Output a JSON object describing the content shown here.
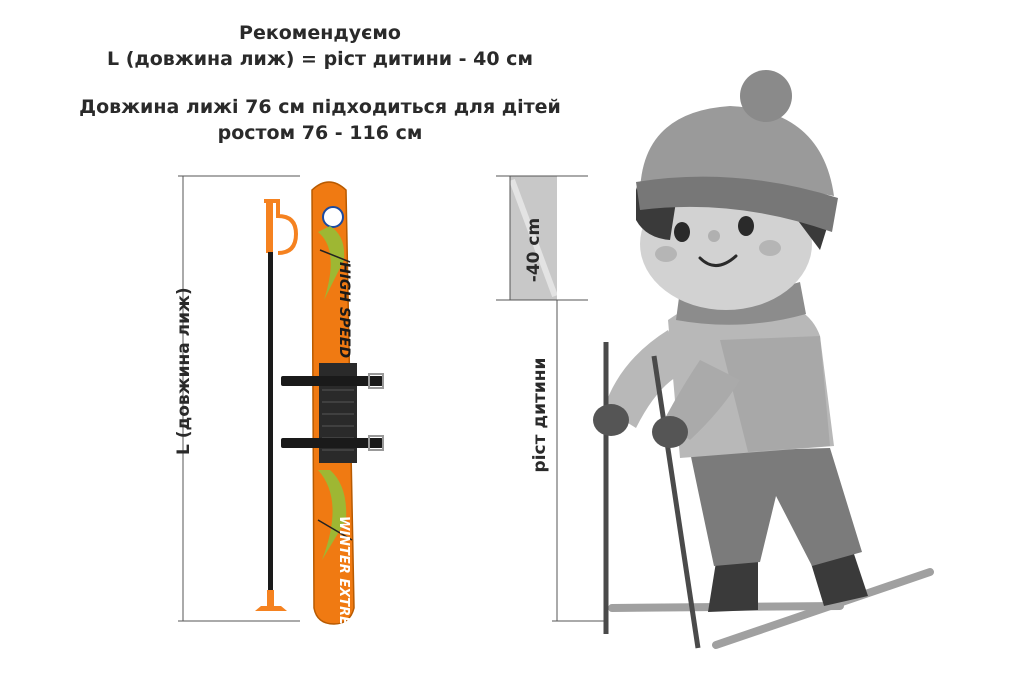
{
  "heading": {
    "line1": "Рекомендуємо",
    "line2": "L (довжина лиж) = ріст дитини - 40 см",
    "line3": "Довжина лижі 76 см підходиться для дітей",
    "line4": "ростом 76 - 116 см"
  },
  "measures": {
    "ski_length_label": "L (довжина лиж)",
    "minus_label": "-40 cm",
    "child_height_label": "ріст дитини"
  },
  "ski": {
    "top_graphic": "HIGH SPEED",
    "bottom_graphic": "WINTER EXTREME"
  },
  "colors": {
    "ski_orange": "#f07a12",
    "pole": "#1a1a1a",
    "pole_orange": "#f58220",
    "child_gray": "#9a9a9a"
  }
}
